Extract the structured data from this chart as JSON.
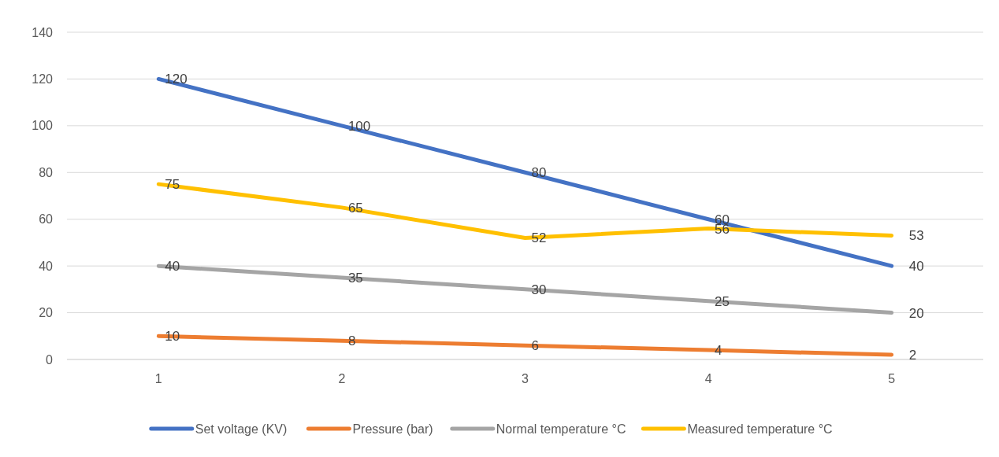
{
  "chart_data": {
    "type": "line",
    "categories": [
      "1",
      "2",
      "3",
      "4",
      "5"
    ],
    "series": [
      {
        "name": "Set voltage (KV)",
        "color": "#4472c4",
        "values": [
          120,
          100,
          80,
          60,
          40
        ]
      },
      {
        "name": "Pressure (bar)",
        "color": "#ed7d31",
        "values": [
          10,
          8,
          6,
          4,
          2
        ]
      },
      {
        "name": "Normal temperature °C",
        "color": "#a5a5a5",
        "values": [
          40,
          35,
          30,
          25,
          20
        ]
      },
      {
        "name": "Measured temperature °C",
        "color": "#ffc000",
        "values": [
          75,
          65,
          52,
          56,
          53
        ]
      }
    ],
    "ylim": [
      0,
      140
    ],
    "yticks": [
      0,
      20,
      40,
      60,
      80,
      100,
      120,
      140
    ],
    "grid": "y",
    "legend": "bottom",
    "data_labels": true,
    "line_style": "solid",
    "marker": "none"
  }
}
